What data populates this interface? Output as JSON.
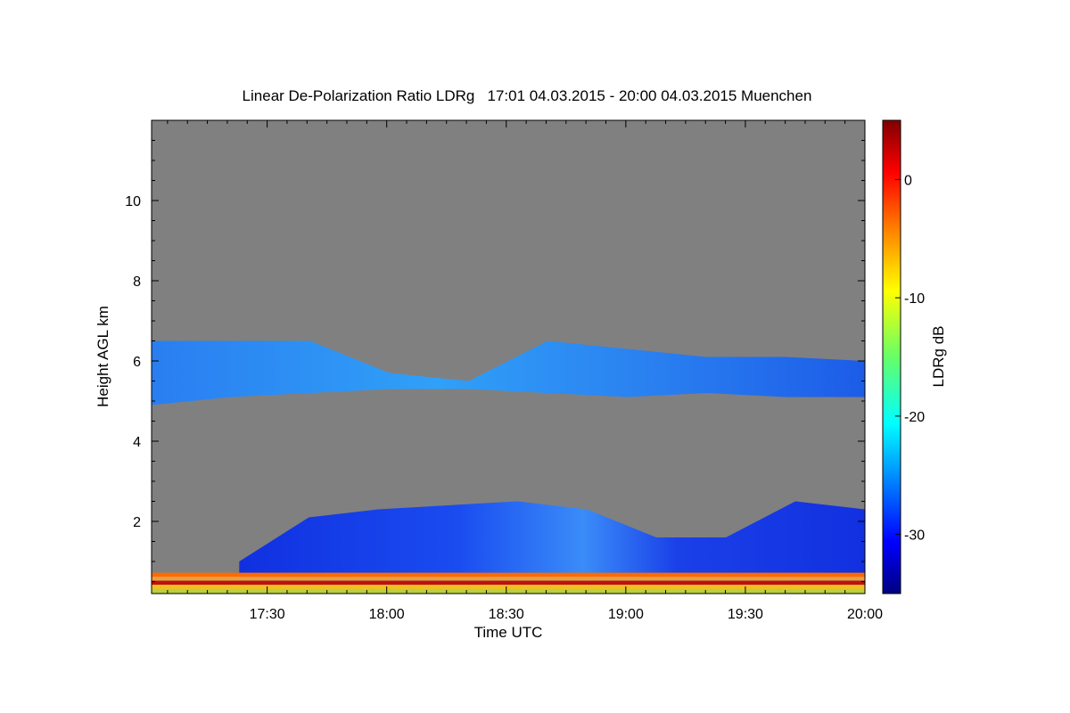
{
  "chart_data": {
    "type": "heatmap",
    "title": "Linear De-Polarization Ratio LDRg   17:01 04.03.2015 - 20:00 04.03.2015 Muenchen",
    "xlabel": "Time UTC",
    "ylabel": "Height AGL km",
    "x_tick_labels": [
      "17:30",
      "18:00",
      "18:30",
      "19:00",
      "19:30",
      "20:00"
    ],
    "x_tick_values_min": [
      1050,
      1080,
      1110,
      1140,
      1170,
      1200
    ],
    "xlim_min": [
      1021,
      1200
    ],
    "y_tick_labels": [
      "2",
      "4",
      "6",
      "8",
      "10"
    ],
    "y_tick_values": [
      2,
      4,
      6,
      8,
      10
    ],
    "ylim": [
      0.2,
      12.0
    ],
    "colorbar": {
      "label": "LDRg dB",
      "tick_labels": [
        "0",
        "-10",
        "-20",
        "-30"
      ],
      "tick_values": [
        0,
        -10,
        -20,
        -30
      ],
      "range": [
        -35,
        5
      ],
      "colormap": "jet"
    },
    "background_color": "#808080",
    "layers": [
      {
        "name": "upper-cloud",
        "start_min": 1021,
        "end_min": 1200,
        "base_km": [
          4.9,
          5.1,
          5.2,
          5.3,
          5.3,
          5.2,
          5.1,
          5.2,
          5.1,
          5.1
        ],
        "top_km": [
          6.5,
          6.5,
          6.5,
          5.7,
          5.5,
          6.5,
          6.3,
          6.1,
          6.1,
          6.0
        ],
        "ldr_db": -26
      },
      {
        "name": "boundary-layer",
        "start_min": 1043,
        "end_min": 1200,
        "base_km": 0.3,
        "top_km": [
          1.0,
          2.1,
          2.3,
          2.4,
          2.5,
          2.3,
          1.6,
          1.6,
          2.5,
          2.3
        ],
        "ldr_db": -30
      },
      {
        "name": "ground-clutter",
        "start_min": 1021,
        "end_min": 1200,
        "base_km": 0.2,
        "top_km": 0.7,
        "ldr_db": -2
      }
    ]
  }
}
